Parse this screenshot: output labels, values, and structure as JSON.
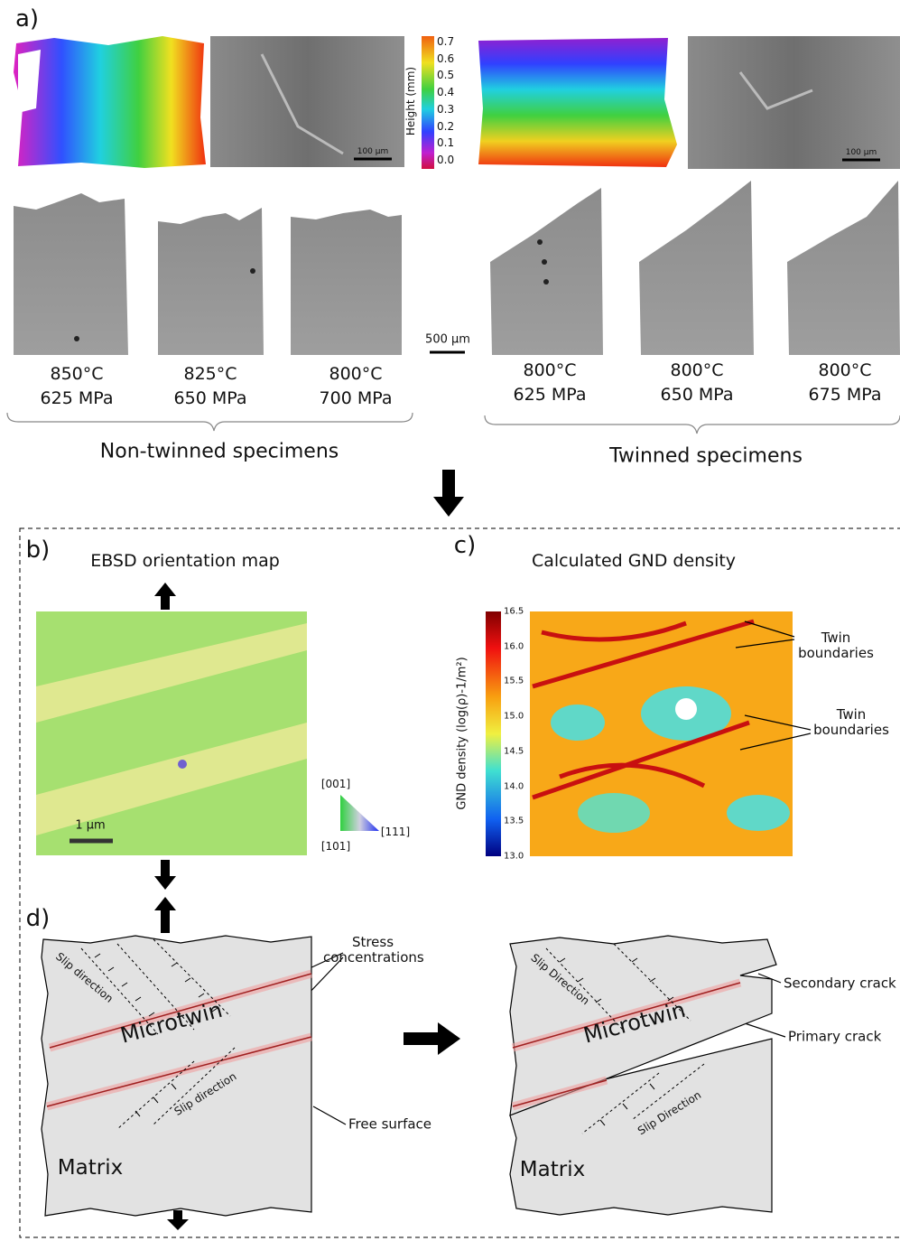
{
  "panel_a": {
    "label": "a)",
    "height_colorbar": {
      "label": "Height (mm)",
      "ticks": [
        "0.7",
        "0.6",
        "0.5",
        "0.4",
        "0.3",
        "0.2",
        "0.1",
        "0.0"
      ]
    },
    "scale_bars": [
      "100 µm",
      "100 µm",
      "500 µm"
    ],
    "specimens": [
      {
        "temperature": "850°C",
        "stress": "625 MPa"
      },
      {
        "temperature": "825°C",
        "stress": "650 MPa"
      },
      {
        "temperature": "800°C",
        "stress": "700 MPa"
      },
      {
        "temperature": "800°C",
        "stress": "625 MPa"
      },
      {
        "temperature": "800°C",
        "stress": "650 MPa"
      },
      {
        "temperature": "800°C",
        "stress": "675 MPa"
      }
    ],
    "groups": [
      "Non-twinned specimens",
      "Twinned specimens"
    ]
  },
  "panel_b": {
    "label": "b)",
    "title": "EBSD orientation map",
    "scale_bar": "1 µm",
    "ipf_labels": [
      "[001]",
      "[101]",
      "[111]"
    ]
  },
  "panel_c": {
    "label": "c)",
    "title": "Calculated GND density",
    "colorbar_label": "GND density (log(ρ)-1/m²)",
    "ticks": [
      "16.5",
      "16.0",
      "15.5",
      "15.0",
      "14.5",
      "14.0",
      "13.5",
      "13.0"
    ],
    "annotations": [
      "Twin boundaries",
      "Twin boundaries"
    ]
  },
  "panel_d": {
    "label": "d)",
    "left": {
      "stress": "Stress concentrations",
      "slip_1": "Slip direction",
      "slip_2": "Slip direction",
      "twin": "Microtwin",
      "surface": "Free surface",
      "matrix": "Matrix"
    },
    "right": {
      "slip_1": "Slip Direction",
      "slip_2": "Slip Direction",
      "twin": "Microtwin",
      "secondary": "Secondary crack",
      "primary": "Primary crack",
      "matrix": "Matrix"
    }
  }
}
